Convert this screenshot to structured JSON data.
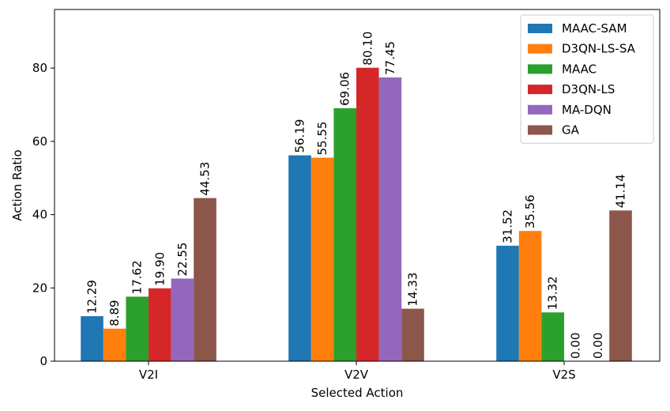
{
  "chart_data": {
    "type": "bar",
    "title": "",
    "xlabel": "Selected Action",
    "ylabel": "Action Ratio",
    "categories": [
      "V2I",
      "V2V",
      "V2S"
    ],
    "ylim": [
      0,
      96
    ],
    "yticks": [
      0,
      20,
      40,
      60,
      80
    ],
    "grid": false,
    "legend_position": "top-right",
    "series": [
      {
        "name": "MAAC-SAM",
        "color": "#1f77b4",
        "values": [
          12.29,
          56.19,
          31.52
        ],
        "labels": [
          "12.29",
          "56.19",
          "31.52"
        ]
      },
      {
        "name": "D3QN-LS-SA",
        "color": "#ff7f0e",
        "values": [
          8.89,
          55.55,
          35.56
        ],
        "labels": [
          "8.89",
          "55.55",
          "35.56"
        ]
      },
      {
        "name": "MAAC",
        "color": "#2ca02c",
        "values": [
          17.62,
          69.06,
          13.32
        ],
        "labels": [
          "17.62",
          "69.06",
          "13.32"
        ]
      },
      {
        "name": "D3QN-LS",
        "color": "#d62728",
        "values": [
          19.9,
          80.1,
          0.0
        ],
        "labels": [
          "19.90",
          "80.10",
          "0.00"
        ]
      },
      {
        "name": "MA-DQN",
        "color": "#9467bd",
        "values": [
          22.55,
          77.45,
          0.0
        ],
        "labels": [
          "22.55",
          "77.45",
          "0.00"
        ]
      },
      {
        "name": "GA",
        "color": "#8c564b",
        "values": [
          44.53,
          14.33,
          41.14
        ],
        "labels": [
          "44.53",
          "14.33",
          "41.14"
        ]
      }
    ]
  }
}
